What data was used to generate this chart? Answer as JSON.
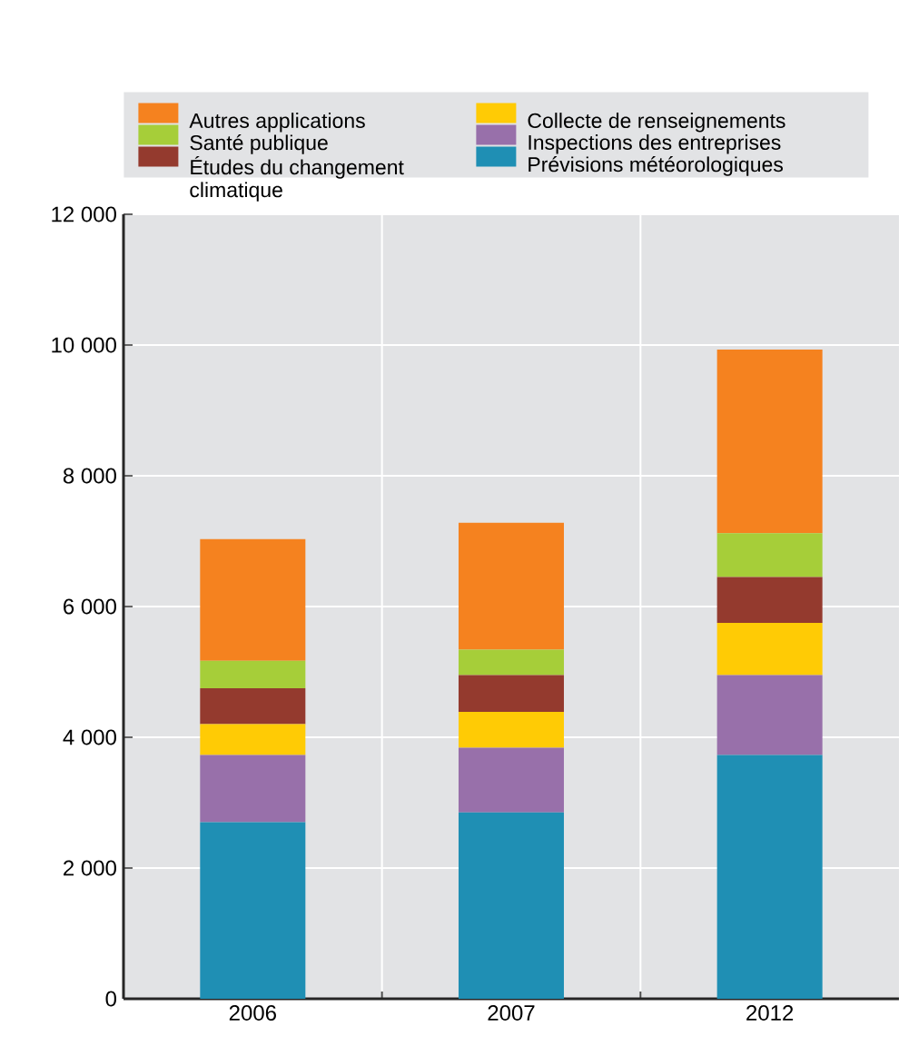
{
  "chart_data": {
    "type": "bar",
    "stacked": true,
    "categories": [
      "2006",
      "2007",
      "2012"
    ],
    "series": [
      {
        "name": "Prévisions météorologiques",
        "color": "#1f8fb4",
        "values": [
          2700,
          2850,
          3730
        ]
      },
      {
        "name": "Inspections des entreprises",
        "color": "#9870aa",
        "values": [
          1030,
          990,
          1220
        ]
      },
      {
        "name": "Collecte de renseignements",
        "color": "#ffcb05",
        "values": [
          470,
          550,
          800
        ]
      },
      {
        "name": "Études du changement climatique",
        "color": "#943a2e",
        "values": [
          550,
          560,
          700
        ]
      },
      {
        "name": "Santé publique",
        "color": "#a6ce39",
        "values": [
          420,
          390,
          670
        ]
      },
      {
        "name": "Autres applications",
        "color": "#f5821f",
        "values": [
          1860,
          1940,
          2810
        ]
      }
    ],
    "ylim": [
      0,
      12000
    ],
    "yticks": [
      0,
      {
        "value": 2000,
        "label": "2 000"
      },
      {
        "value": 4000,
        "label": "4 000"
      },
      {
        "value": 6000,
        "label": "6 000"
      },
      {
        "value": 8000,
        "label": "8 000"
      },
      {
        "value": 10000,
        "label": "10 000"
      },
      {
        "value": 12000,
        "label": "12 000"
      }
    ],
    "grid": true,
    "legend": "top"
  }
}
